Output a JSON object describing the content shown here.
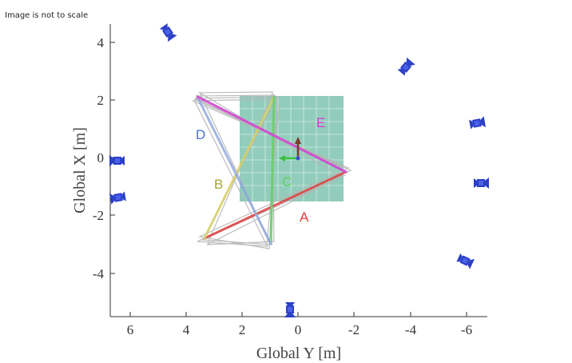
{
  "note": "Image is not to scale",
  "axes": {
    "xlabel": "Global Y [m]",
    "ylabel": "Global X [m]",
    "x_ticks": [
      "6",
      "4",
      "2",
      "0",
      "-2",
      "-4",
      "-6"
    ],
    "y_ticks": [
      "4",
      "2",
      "0",
      "-2",
      "-4"
    ]
  },
  "segments": [
    {
      "label": "A",
      "color": "#e23a3a"
    },
    {
      "label": "B",
      "color": "#a9a53a"
    },
    {
      "label": "C",
      "color": "#5fd35f"
    },
    {
      "label": "D",
      "color": "#4a6fd0"
    },
    {
      "label": "E",
      "color": "#d637d6"
    }
  ],
  "objects": {
    "grid_mat": "teal-grid-mat",
    "cameras": "camera-icon",
    "origin": "coordinate-frame-icon"
  },
  "colors": {
    "mat": "#7fc4b0",
    "camera": "#2b3fc8",
    "trajectory": "#b5b5b5"
  }
}
